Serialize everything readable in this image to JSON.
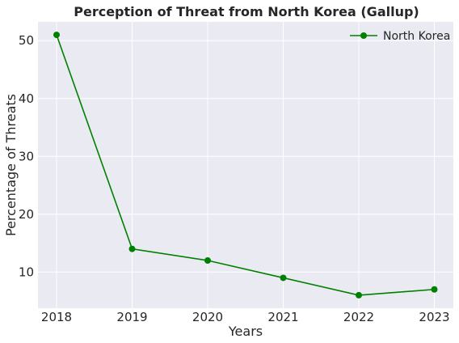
{
  "chart_data": {
    "type": "line",
    "title": "Perception of Threat from North Korea (Gallup)",
    "xlabel": "Years",
    "ylabel": "Percentage of Threats",
    "x": [
      "2018",
      "2019",
      "2020",
      "2021",
      "2022",
      "2023"
    ],
    "y_ticks": [
      "10",
      "20",
      "30",
      "40",
      "50"
    ],
    "series": [
      {
        "name": "North Korea",
        "values": [
          51,
          14,
          12,
          9,
          6,
          7
        ],
        "color": "#008000",
        "marker": "circle"
      }
    ],
    "ylim": [
      3.75,
      53.25
    ],
    "grid": true,
    "legend_position": "top-right",
    "background_color": "#eaeaf2",
    "grid_color": "#ffffff"
  }
}
